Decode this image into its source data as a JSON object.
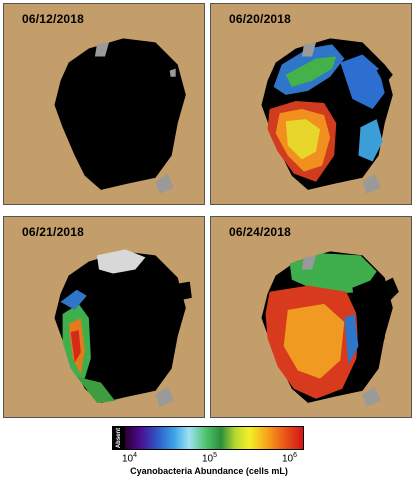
{
  "panels": [
    {
      "date": "06/12/2018"
    },
    {
      "date": "06/20/2018"
    },
    {
      "date": "06/21/2018"
    },
    {
      "date": "06/24/2018"
    }
  ],
  "legend": {
    "absent_label": "Absent",
    "ticks": [
      {
        "base": "10",
        "exp": "4"
      },
      {
        "base": "10",
        "exp": "5"
      },
      {
        "base": "10",
        "exp": "6"
      }
    ],
    "title": "Cyanobacteria Abundance (cells mL)"
  },
  "colors": {
    "land": "#c39d6a",
    "water_absent": "#000000",
    "no_data": "#9a9a9a"
  }
}
